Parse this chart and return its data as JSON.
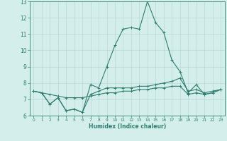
{
  "xlabel": "Humidex (Indice chaleur)",
  "x": [
    0,
    1,
    2,
    3,
    4,
    5,
    6,
    7,
    8,
    9,
    10,
    11,
    12,
    13,
    14,
    15,
    16,
    17,
    18,
    19,
    20,
    21,
    22,
    23
  ],
  "line1": [
    7.5,
    7.4,
    6.7,
    7.1,
    6.3,
    6.4,
    6.2,
    7.9,
    7.7,
    9.0,
    10.3,
    11.3,
    11.4,
    11.3,
    13.0,
    11.7,
    11.1,
    9.4,
    8.7,
    7.4,
    7.9,
    7.3,
    7.4,
    7.6
  ],
  "line2": [
    7.5,
    7.4,
    6.7,
    7.1,
    6.3,
    6.4,
    6.2,
    7.3,
    7.5,
    7.7,
    7.7,
    7.7,
    7.7,
    7.8,
    7.8,
    7.9,
    8.0,
    8.1,
    8.3,
    7.5,
    7.6,
    7.4,
    7.5,
    7.6
  ],
  "line3": [
    7.5,
    7.4,
    7.3,
    7.2,
    7.1,
    7.1,
    7.1,
    7.2,
    7.3,
    7.4,
    7.4,
    7.5,
    7.5,
    7.6,
    7.6,
    7.7,
    7.7,
    7.8,
    7.8,
    7.3,
    7.4,
    7.3,
    7.4,
    7.6
  ],
  "line_color": "#2e7d6e",
  "bg_color": "#d4eeec",
  "grid_color": "#b8d8d4",
  "ylim": [
    6,
    13
  ],
  "xlim": [
    -0.5,
    23.5
  ],
  "yticks": [
    6,
    7,
    8,
    9,
    10,
    11,
    12,
    13
  ],
  "xticks": [
    0,
    1,
    2,
    3,
    4,
    5,
    6,
    7,
    8,
    9,
    10,
    11,
    12,
    13,
    14,
    15,
    16,
    17,
    18,
    19,
    20,
    21,
    22,
    23
  ]
}
